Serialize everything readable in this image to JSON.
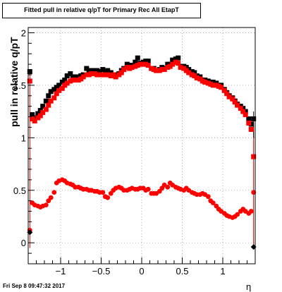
{
  "footer": {
    "timestamp": "Fri Sep  8 09:47:32 2017"
  },
  "chart_data": {
    "type": "scatter",
    "title": "Fitted pull in relative q/pT for Primary Rec All EtapT",
    "xlabel": "η",
    "ylabel": "pull in relative q/pT",
    "xlim": [
      -1.4,
      1.4
    ],
    "ylim": [
      -0.2,
      2.05
    ],
    "grid": true,
    "x_ticks": [
      -1,
      -0.5,
      0,
      0.5,
      1
    ],
    "x_tick_labels": [
      "−1",
      "−0.5",
      "0",
      "0.5",
      "1"
    ],
    "y_ticks": [
      0,
      0.5,
      1,
      1.5,
      2
    ],
    "y_tick_labels": [
      "0",
      "0.5",
      "1",
      "1.5",
      "2"
    ],
    "series": [
      {
        "name": "",
        "color": "#000000",
        "marker": "square",
        "x": [
          -1.38,
          -1.35,
          -1.32,
          -1.28,
          -1.25,
          -1.22,
          -1.18,
          -1.15,
          -1.12,
          -1.08,
          -1.05,
          -1.02,
          -0.98,
          -0.95,
          -0.92,
          -0.88,
          -0.85,
          -0.82,
          -0.78,
          -0.75,
          -0.72,
          -0.68,
          -0.65,
          -0.62,
          -0.58,
          -0.55,
          -0.52,
          -0.48,
          -0.45,
          -0.42,
          -0.38,
          -0.35,
          -0.32,
          -0.28,
          -0.25,
          -0.22,
          -0.18,
          -0.15,
          -0.12,
          -0.08,
          -0.05,
          -0.02,
          0.02,
          0.05,
          0.08,
          0.12,
          0.15,
          0.18,
          0.22,
          0.25,
          0.28,
          0.32,
          0.35,
          0.38,
          0.42,
          0.45,
          0.48,
          0.52,
          0.55,
          0.58,
          0.62,
          0.65,
          0.68,
          0.72,
          0.75,
          0.78,
          0.82,
          0.85,
          0.88,
          0.92,
          0.95,
          0.98,
          1.02,
          1.05,
          1.08,
          1.12,
          1.15,
          1.18,
          1.22,
          1.25,
          1.28,
          1.32,
          1.35,
          1.38
        ],
        "y": [
          1.63,
          1.22,
          1.19,
          1.23,
          1.26,
          1.3,
          1.35,
          1.4,
          1.44,
          1.46,
          1.48,
          1.5,
          1.53,
          1.55,
          1.59,
          1.61,
          1.58,
          1.58,
          1.58,
          1.59,
          1.6,
          1.66,
          1.64,
          1.64,
          1.64,
          1.64,
          1.63,
          1.65,
          1.62,
          1.64,
          1.62,
          1.6,
          1.6,
          1.61,
          1.64,
          1.66,
          1.7,
          1.69,
          1.69,
          1.72,
          1.76,
          1.71,
          1.72,
          1.73,
          1.73,
          1.66,
          1.66,
          1.64,
          1.65,
          1.67,
          1.66,
          1.7,
          1.7,
          1.74,
          1.75,
          1.76,
          1.68,
          1.68,
          1.67,
          1.65,
          1.63,
          1.62,
          1.59,
          1.58,
          1.55,
          1.55,
          1.54,
          1.53,
          1.53,
          1.52,
          1.5,
          1.5,
          1.46,
          1.43,
          1.4,
          1.38,
          1.35,
          1.32,
          1.3,
          1.28,
          1.25,
          1.18,
          1.13,
          1.18
        ]
      },
      {
        "name": "",
        "color": "#ff0000",
        "marker": "square",
        "x": [
          -1.38,
          -1.35,
          -1.32,
          -1.28,
          -1.25,
          -1.22,
          -1.18,
          -1.15,
          -1.12,
          -1.08,
          -1.05,
          -1.02,
          -0.98,
          -0.95,
          -0.92,
          -0.88,
          -0.85,
          -0.82,
          -0.78,
          -0.75,
          -0.72,
          -0.68,
          -0.65,
          -0.62,
          -0.58,
          -0.55,
          -0.52,
          -0.48,
          -0.45,
          -0.42,
          -0.38,
          -0.35,
          -0.32,
          -0.28,
          -0.25,
          -0.22,
          -0.18,
          -0.15,
          -0.12,
          -0.08,
          -0.05,
          -0.02,
          0.02,
          0.05,
          0.08,
          0.12,
          0.15,
          0.18,
          0.22,
          0.25,
          0.28,
          0.32,
          0.35,
          0.38,
          0.42,
          0.45,
          0.48,
          0.52,
          0.55,
          0.58,
          0.62,
          0.65,
          0.68,
          0.72,
          0.75,
          0.78,
          0.82,
          0.85,
          0.88,
          0.92,
          0.95,
          0.98,
          1.02,
          1.05,
          1.08,
          1.12,
          1.15,
          1.18,
          1.22,
          1.25,
          1.28,
          1.32,
          1.35,
          1.38
        ],
        "y": [
          1.54,
          1.18,
          1.16,
          1.19,
          1.21,
          1.24,
          1.27,
          1.31,
          1.35,
          1.38,
          1.42,
          1.45,
          1.47,
          1.5,
          1.52,
          1.54,
          1.55,
          1.55,
          1.55,
          1.56,
          1.58,
          1.6,
          1.6,
          1.61,
          1.61,
          1.6,
          1.6,
          1.6,
          1.6,
          1.6,
          1.59,
          1.6,
          1.58,
          1.6,
          1.62,
          1.65,
          1.67,
          1.66,
          1.67,
          1.68,
          1.69,
          1.7,
          1.7,
          1.7,
          1.69,
          1.66,
          1.65,
          1.64,
          1.64,
          1.65,
          1.65,
          1.67,
          1.68,
          1.7,
          1.72,
          1.71,
          1.67,
          1.66,
          1.64,
          1.62,
          1.6,
          1.59,
          1.57,
          1.56,
          1.54,
          1.53,
          1.52,
          1.51,
          1.5,
          1.5,
          1.49,
          1.48,
          1.45,
          1.42,
          1.39,
          1.37,
          1.34,
          1.31,
          1.28,
          1.25,
          1.22,
          1.14,
          1.08,
          0.82
        ]
      },
      {
        "name": "",
        "color": "#ff0000",
        "marker": "circle",
        "x": [
          -1.38,
          -1.35,
          -1.32,
          -1.28,
          -1.25,
          -1.22,
          -1.18,
          -1.15,
          -1.12,
          -1.08,
          -1.05,
          -1.02,
          -0.98,
          -0.95,
          -0.92,
          -0.88,
          -0.85,
          -0.82,
          -0.78,
          -0.75,
          -0.72,
          -0.68,
          -0.65,
          -0.62,
          -0.58,
          -0.55,
          -0.52,
          -0.48,
          -0.45,
          -0.42,
          -0.38,
          -0.35,
          -0.32,
          -0.28,
          -0.25,
          -0.22,
          -0.18,
          -0.15,
          -0.12,
          -0.08,
          -0.05,
          -0.02,
          0.02,
          0.05,
          0.08,
          0.12,
          0.15,
          0.18,
          0.22,
          0.25,
          0.28,
          0.32,
          0.35,
          0.38,
          0.42,
          0.45,
          0.48,
          0.52,
          0.55,
          0.58,
          0.62,
          0.65,
          0.68,
          0.72,
          0.75,
          0.78,
          0.82,
          0.85,
          0.88,
          0.92,
          0.95,
          0.98,
          1.02,
          1.05,
          1.08,
          1.12,
          1.15,
          1.18,
          1.22,
          1.25,
          1.28,
          1.32,
          1.35,
          1.38
        ],
        "y": [
          0.12,
          0.38,
          0.36,
          0.35,
          0.34,
          0.35,
          0.36,
          0.4,
          0.43,
          0.48,
          0.57,
          0.59,
          0.6,
          0.59,
          0.57,
          0.56,
          0.55,
          0.53,
          0.53,
          0.52,
          0.51,
          0.51,
          0.5,
          0.5,
          0.49,
          0.49,
          0.48,
          0.48,
          0.44,
          0.43,
          0.47,
          0.5,
          0.52,
          0.53,
          0.52,
          0.5,
          0.5,
          0.51,
          0.52,
          0.51,
          0.51,
          0.52,
          0.52,
          0.5,
          0.51,
          0.47,
          0.47,
          0.47,
          0.49,
          0.52,
          0.55,
          0.53,
          0.57,
          0.55,
          0.53,
          0.52,
          0.51,
          0.5,
          0.52,
          0.5,
          0.48,
          0.47,
          0.46,
          0.46,
          0.47,
          0.46,
          0.44,
          0.4,
          0.38,
          0.35,
          0.32,
          0.3,
          0.28,
          0.26,
          0.25,
          0.24,
          0.25,
          0.27,
          0.3,
          0.32,
          0.3,
          0.28,
          0.3,
          0.48
        ]
      },
      {
        "name": "",
        "color": "#000000",
        "marker": "diamond",
        "x": [
          -1.38,
          1.38
        ],
        "y": [
          0.1,
          -0.04
        ]
      }
    ]
  }
}
